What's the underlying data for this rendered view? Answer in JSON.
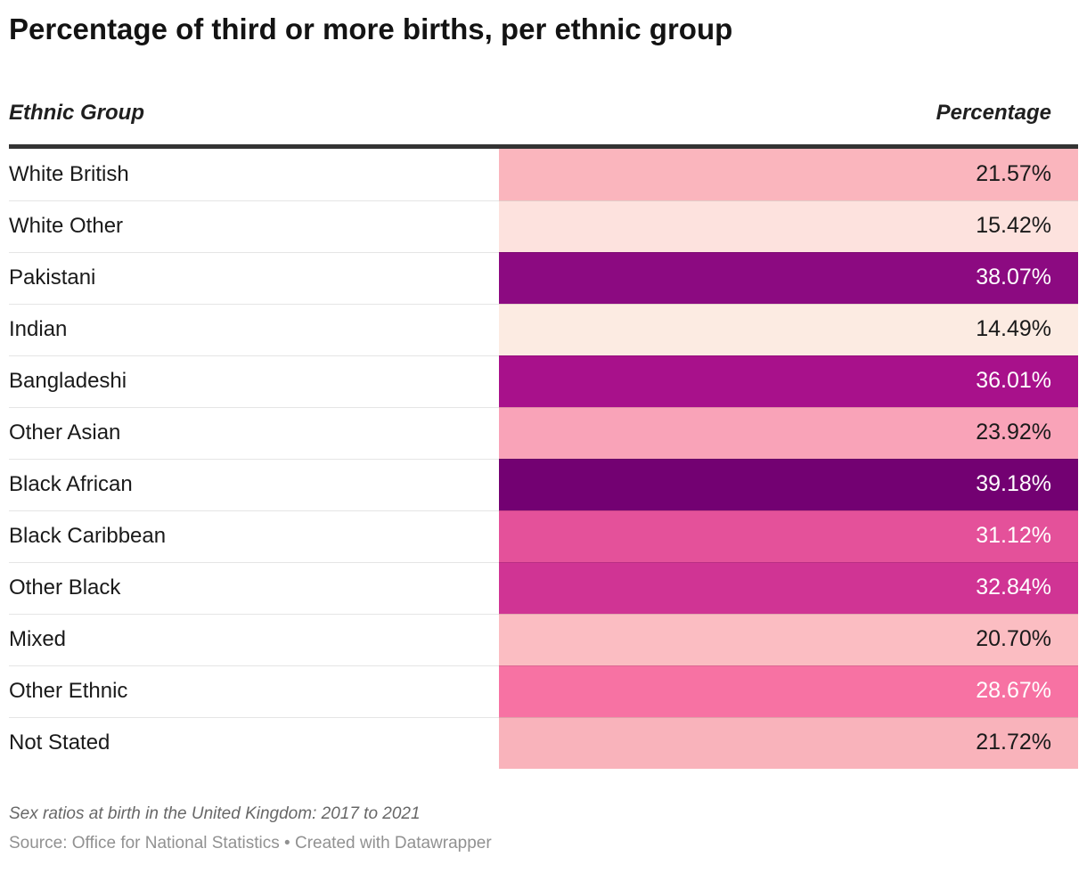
{
  "title": "Percentage of third or more births, per ethnic group",
  "table": {
    "columns": {
      "group": "Ethnic Group",
      "value": "Percentage"
    },
    "rows": [
      {
        "label": "White British",
        "value": "21.57%",
        "bar_color": "#fab5bd",
        "text_color": "#1a1a1a"
      },
      {
        "label": "White Other",
        "value": "15.42%",
        "bar_color": "#fde2de",
        "text_color": "#1a1a1a"
      },
      {
        "label": "Pakistani",
        "value": "38.07%",
        "bar_color": "#8c0a81",
        "text_color": "#ffffff"
      },
      {
        "label": "Indian",
        "value": "14.49%",
        "bar_color": "#fcebe2",
        "text_color": "#1a1a1a"
      },
      {
        "label": "Bangladeshi",
        "value": "36.01%",
        "bar_color": "#a8118b",
        "text_color": "#ffffff"
      },
      {
        "label": "Other Asian",
        "value": "23.92%",
        "bar_color": "#f9a3b8",
        "text_color": "#1a1a1a"
      },
      {
        "label": "Black African",
        "value": "39.18%",
        "bar_color": "#730172",
        "text_color": "#ffffff"
      },
      {
        "label": "Black Caribbean",
        "value": "31.12%",
        "bar_color": "#e4519a",
        "text_color": "#ffffff"
      },
      {
        "label": "Other Black",
        "value": "32.84%",
        "bar_color": "#d03494",
        "text_color": "#ffffff"
      },
      {
        "label": "Mixed",
        "value": "20.70%",
        "bar_color": "#fbbdc2",
        "text_color": "#1a1a1a"
      },
      {
        "label": "Other Ethnic",
        "value": "28.67%",
        "bar_color": "#f772a3",
        "text_color": "#ffffff"
      },
      {
        "label": "Not Stated",
        "value": "21.72%",
        "bar_color": "#f9b3bb",
        "text_color": "#1a1a1a"
      }
    ]
  },
  "footer": {
    "note": "Sex ratios at birth in the United Kingdom: 2017 to 2021",
    "source_line": "Source: Office for National Statistics • Created with Datawrapper"
  },
  "colors": {
    "header_rule": "#333333",
    "title_text": "#131313",
    "row_separator": "rgba(0,0,0,0.1)"
  },
  "chart_data": {
    "type": "table",
    "title": "Percentage of third or more births, per ethnic group",
    "columns": [
      "Ethnic Group",
      "Percentage"
    ],
    "categories": [
      "White British",
      "White Other",
      "Pakistani",
      "Indian",
      "Bangladeshi",
      "Other Asian",
      "Black African",
      "Black Caribbean",
      "Other Black",
      "Mixed",
      "Other Ethnic",
      "Not Stated"
    ],
    "values": [
      21.57,
      15.42,
      38.07,
      14.49,
      36.01,
      23.92,
      39.18,
      31.12,
      32.84,
      20.7,
      28.67,
      21.72
    ],
    "unit": "%",
    "color_encoding": "cell background encodes value on a pink-to-purple (RdPu-like) scale, darker = higher",
    "legend_position": "none",
    "grid": false,
    "note": "Sex ratios at birth in the United Kingdom: 2017 to 2021",
    "source": "Office for National Statistics",
    "created_with": "Datawrapper"
  }
}
